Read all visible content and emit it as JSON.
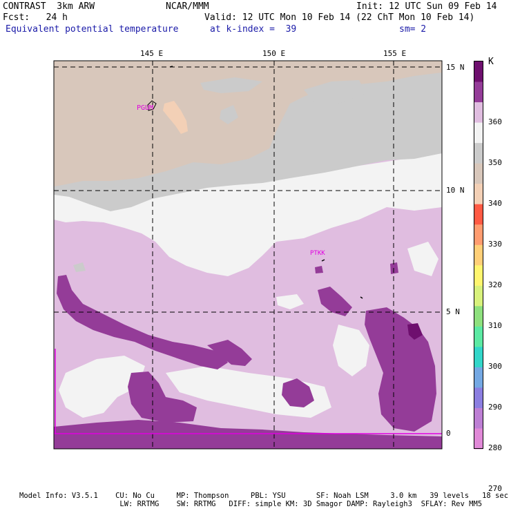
{
  "header": {
    "model": "CONTRAST  3km ARW",
    "org": "NCAR/MMM",
    "init": "Init: 12 UTC Sun 09 Feb 14",
    "fcst": "Fcst:   24 h",
    "valid": "Valid: 12 UTC Mon 10 Feb 14 (22 ChT Mon 10 Feb 14)",
    "field": "Equivalent potential temperature",
    "level": "at k-index =  39",
    "smooth": "sm= 2"
  },
  "map": {
    "lon_labels": [
      "145 E",
      "150 E",
      "155 E"
    ],
    "lat_labels": [
      "15 N",
      "10 N",
      "5 N",
      "0"
    ],
    "stations": [
      {
        "id": "PGUM",
        "label": "PGUM"
      },
      {
        "id": "PTKK",
        "label": "PTKK"
      }
    ]
  },
  "colorbar": {
    "unit": "K",
    "tick_labels": [
      "360",
      "350",
      "340",
      "330",
      "320",
      "310",
      "300",
      "290",
      "280",
      "270"
    ],
    "colors": [
      "#6e0f6e",
      "#943c98",
      "#e0bde0",
      "#f3f3f3",
      "#cbcbcb",
      "#d8c7bb",
      "#f3d0b6",
      "#ff5a44",
      "#ff9c70",
      "#ffcf78",
      "#fff56f",
      "#d8f17c",
      "#8ee07e",
      "#5ce9a3",
      "#33d6c9",
      "#74a8e3",
      "#8b7ee0",
      "#bd7fd4",
      "#e089d7"
    ]
  },
  "footer": {
    "line1": "Model Info: V3.5.1    CU: No Cu     MP: Thompson     PBL: YSU       SF: Noah LSM     3.0 km   39 levels   18 sec",
    "line2": "                       LW: RRTMG    SW: RRTMG   DIFF: simple KM: 3D Smagor DAMP: Rayleigh3  SFLAY: Rev MM5"
  }
}
